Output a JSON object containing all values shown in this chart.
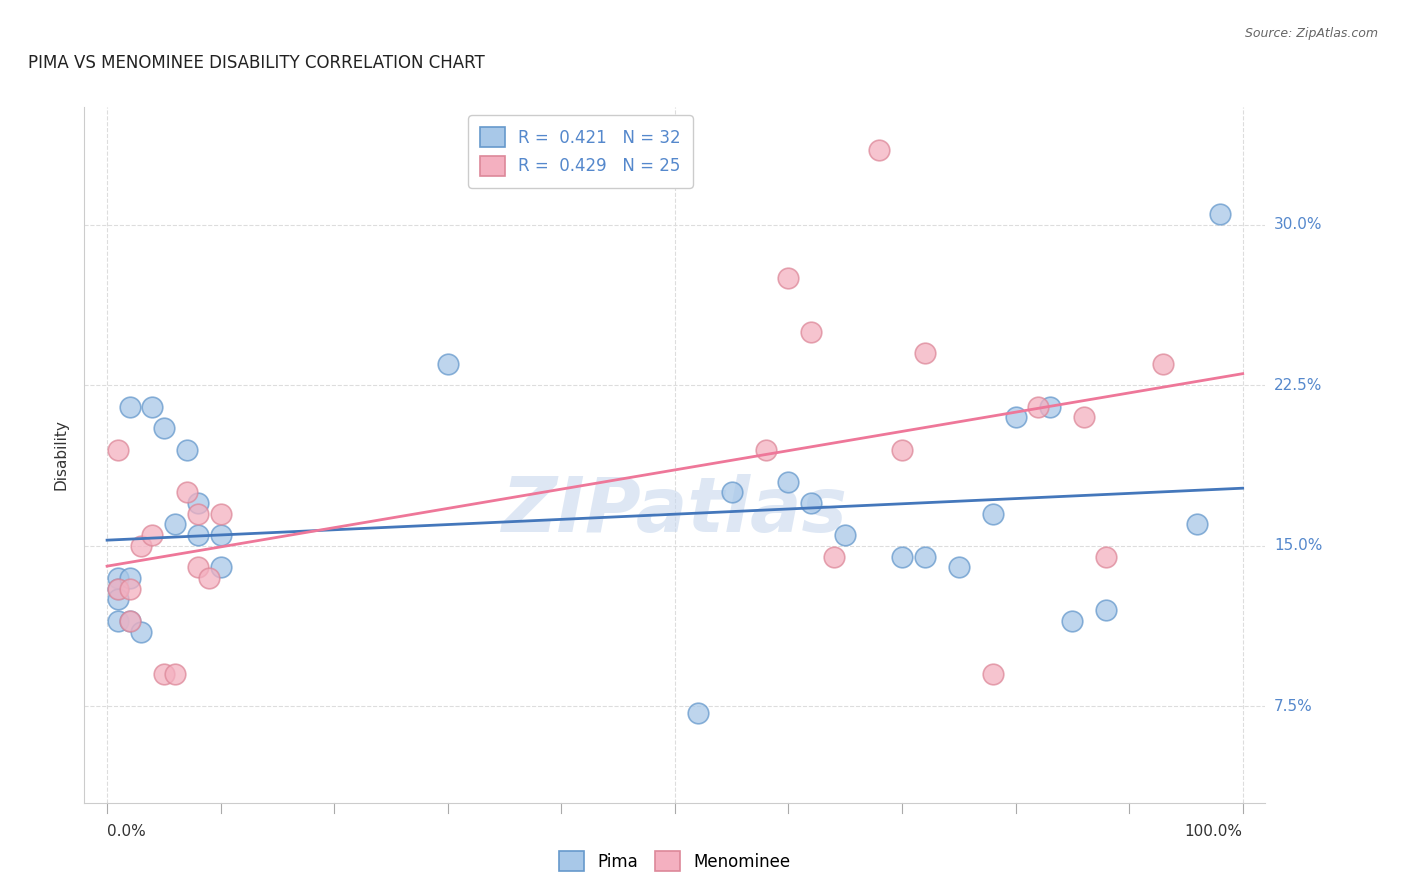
{
  "title": "PIMA VS MENOMINEE DISABILITY CORRELATION CHART",
  "source": "Source: ZipAtlas.com",
  "ylabel": "Disability",
  "xlim": [
    -0.02,
    1.02
  ],
  "ylim": [
    0.03,
    0.355
  ],
  "yticks": [
    0.075,
    0.15,
    0.225,
    0.3
  ],
  "ytick_labels": [
    "7.5%",
    "15.0%",
    "22.5%",
    "30.0%"
  ],
  "xtick_labels": [
    "0.0%",
    "100.0%"
  ],
  "xtick_positions": [
    0.0,
    1.0
  ],
  "pima_color": "#A8C8E8",
  "menominee_color": "#F4B0C0",
  "pima_edge_color": "#6699CC",
  "menominee_edge_color": "#DD8899",
  "pima_line_color": "#4477BB",
  "menominee_line_color": "#EE7799",
  "ytick_color": "#5588CC",
  "R_pima": 0.421,
  "N_pima": 32,
  "R_menominee": 0.429,
  "N_menominee": 25,
  "pima_x": [
    0.01,
    0.01,
    0.01,
    0.01,
    0.02,
    0.02,
    0.02,
    0.03,
    0.04,
    0.05,
    0.06,
    0.07,
    0.08,
    0.08,
    0.1,
    0.1,
    0.3,
    0.52,
    0.55,
    0.6,
    0.62,
    0.65,
    0.7,
    0.72,
    0.75,
    0.78,
    0.8,
    0.83,
    0.85,
    0.88,
    0.96,
    0.98
  ],
  "pima_y": [
    0.135,
    0.13,
    0.125,
    0.115,
    0.215,
    0.135,
    0.115,
    0.11,
    0.215,
    0.205,
    0.16,
    0.195,
    0.17,
    0.155,
    0.155,
    0.14,
    0.235,
    0.072,
    0.175,
    0.18,
    0.17,
    0.155,
    0.145,
    0.145,
    0.14,
    0.165,
    0.21,
    0.215,
    0.115,
    0.12,
    0.16,
    0.305
  ],
  "menominee_x": [
    0.01,
    0.01,
    0.02,
    0.02,
    0.03,
    0.04,
    0.05,
    0.06,
    0.07,
    0.08,
    0.08,
    0.09,
    0.1,
    0.58,
    0.6,
    0.62,
    0.64,
    0.68,
    0.7,
    0.72,
    0.78,
    0.82,
    0.86,
    0.88,
    0.93
  ],
  "menominee_y": [
    0.195,
    0.13,
    0.13,
    0.115,
    0.15,
    0.155,
    0.09,
    0.09,
    0.175,
    0.165,
    0.14,
    0.135,
    0.165,
    0.195,
    0.275,
    0.25,
    0.145,
    0.335,
    0.195,
    0.24,
    0.09,
    0.215,
    0.21,
    0.145,
    0.235
  ],
  "background_color": "#FFFFFF",
  "grid_color": "#DDDDDD",
  "watermark": "ZIPatlas",
  "watermark_color": "#C8D8EE",
  "title_fontsize": 12,
  "label_fontsize": 11,
  "tick_fontsize": 11,
  "legend_fontsize": 12
}
